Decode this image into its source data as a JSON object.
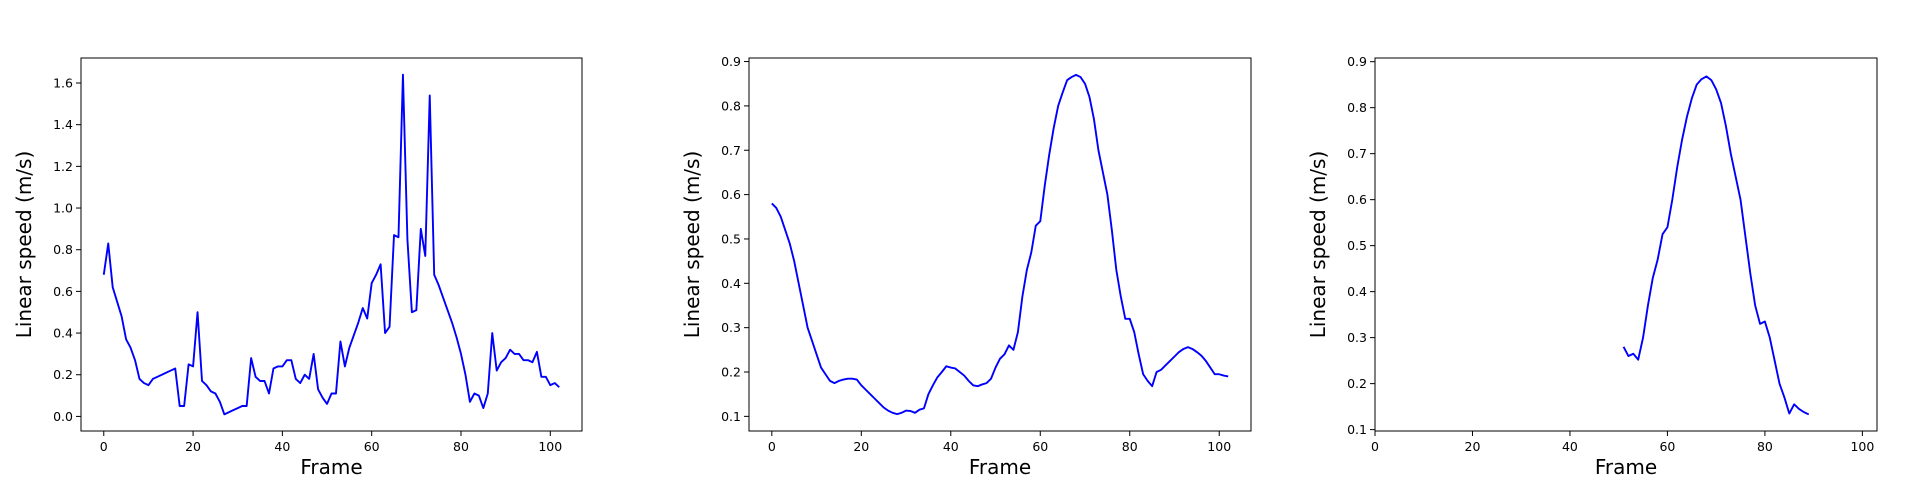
{
  "chart_data": [
    {
      "type": "line",
      "xlabel": "Frame",
      "ylabel": "Linear speed (m/s)",
      "xlim": [
        -5.1,
        107.1
      ],
      "ylim": [
        -0.07,
        1.72
      ],
      "xticks": [
        0,
        20,
        40,
        60,
        80,
        100
      ],
      "yticks": [
        {
          "value": 0,
          "label": "0.0"
        },
        0.2,
        0.4,
        0.6,
        0.8,
        {
          "value": 1,
          "label": "1.0"
        },
        1.2,
        1.4,
        1.6
      ],
      "x": [
        0,
        1,
        2,
        3,
        4,
        5,
        6,
        7,
        8,
        9,
        10,
        11,
        12,
        13,
        14,
        15,
        16,
        17,
        18,
        19,
        20,
        21,
        22,
        23,
        24,
        25,
        26,
        27,
        28,
        29,
        30,
        31,
        32,
        33,
        34,
        35,
        36,
        37,
        38,
        39,
        40,
        41,
        42,
        43,
        44,
        45,
        46,
        47,
        48,
        49,
        50,
        51,
        52,
        53,
        54,
        55,
        56,
        57,
        58,
        59,
        60,
        61,
        62,
        63,
        64,
        65,
        66,
        67,
        68,
        69,
        70,
        71,
        72,
        73,
        74,
        75,
        76,
        77,
        78,
        79,
        80,
        81,
        82,
        83,
        84,
        85,
        86,
        87,
        88,
        89,
        90,
        91,
        92,
        93,
        94,
        95,
        96,
        97,
        98,
        99,
        100,
        101,
        102
      ],
      "series": [
        {
          "color": "#0000ff",
          "values": [
            0.68,
            0.83,
            0.62,
            0.55,
            0.48,
            0.37,
            0.33,
            0.27,
            0.18,
            0.16,
            0.15,
            0.18,
            0.19,
            0.2,
            0.21,
            0.22,
            0.23,
            0.05,
            0.05,
            0.25,
            0.24,
            0.5,
            0.17,
            0.15,
            0.12,
            0.11,
            0.07,
            0.01,
            0.02,
            0.03,
            0.04,
            0.05,
            0.05,
            0.28,
            0.19,
            0.17,
            0.17,
            0.11,
            0.23,
            0.24,
            0.24,
            0.27,
            0.27,
            0.18,
            0.16,
            0.2,
            0.18,
            0.3,
            0.13,
            0.09,
            0.06,
            0.11,
            0.11,
            0.36,
            0.24,
            0.33,
            0.39,
            0.45,
            0.52,
            0.47,
            0.64,
            0.68,
            0.73,
            0.4,
            0.43,
            0.87,
            0.86,
            1.64,
            0.85,
            0.5,
            0.51,
            0.9,
            0.77,
            1.54,
            0.68,
            0.63,
            0.57,
            0.51,
            0.45,
            0.38,
            0.3,
            0.2,
            0.07,
            0.11,
            0.1,
            0.04,
            0.11,
            0.4,
            0.22,
            0.26,
            0.28,
            0.32,
            0.3,
            0.3,
            0.27,
            0.27,
            0.26,
            0.31,
            0.19,
            0.19,
            0.15,
            0.16,
            0.14
          ]
        }
      ]
    },
    {
      "type": "line",
      "xlabel": "Frame",
      "ylabel": "Linear speed (m/s)",
      "xlim": [
        -5.1,
        107.1
      ],
      "ylim": [
        0.067,
        0.908
      ],
      "xticks": [
        0,
        20,
        40,
        60,
        80,
        100
      ],
      "yticks": [
        0.1,
        0.2,
        0.3,
        0.4,
        0.5,
        0.6,
        0.7,
        0.8,
        0.9
      ],
      "x": [
        0,
        1,
        2,
        3,
        4,
        5,
        6,
        7,
        8,
        9,
        10,
        11,
        12,
        13,
        14,
        15,
        16,
        17,
        18,
        19,
        20,
        21,
        22,
        23,
        24,
        25,
        26,
        27,
        28,
        29,
        30,
        31,
        32,
        33,
        34,
        35,
        36,
        37,
        38,
        39,
        40,
        41,
        42,
        43,
        44,
        45,
        46,
        47,
        48,
        49,
        50,
        51,
        52,
        53,
        54,
        55,
        56,
        57,
        58,
        59,
        60,
        61,
        62,
        63,
        64,
        65,
        66,
        67,
        68,
        69,
        70,
        71,
        72,
        73,
        74,
        75,
        76,
        77,
        78,
        79,
        80,
        81,
        82,
        83,
        84,
        85,
        86,
        87,
        88,
        89,
        90,
        91,
        92,
        93,
        94,
        95,
        96,
        97,
        98,
        99,
        100,
        101,
        102
      ],
      "series": [
        {
          "color": "#0000ff",
          "values": [
            0.58,
            0.57,
            0.55,
            0.52,
            0.49,
            0.45,
            0.4,
            0.35,
            0.3,
            0.27,
            0.24,
            0.21,
            0.195,
            0.18,
            0.175,
            0.18,
            0.183,
            0.185,
            0.185,
            0.183,
            0.17,
            0.16,
            0.15,
            0.14,
            0.13,
            0.12,
            0.113,
            0.108,
            0.105,
            0.108,
            0.113,
            0.112,
            0.108,
            0.115,
            0.118,
            0.15,
            0.17,
            0.188,
            0.2,
            0.213,
            0.21,
            0.208,
            0.2,
            0.192,
            0.18,
            0.17,
            0.168,
            0.172,
            0.175,
            0.185,
            0.21,
            0.23,
            0.24,
            0.26,
            0.25,
            0.29,
            0.37,
            0.43,
            0.47,
            0.53,
            0.54,
            0.62,
            0.69,
            0.75,
            0.8,
            0.83,
            0.858,
            0.865,
            0.87,
            0.865,
            0.85,
            0.82,
            0.77,
            0.7,
            0.65,
            0.6,
            0.52,
            0.43,
            0.37,
            0.32,
            0.32,
            0.29,
            0.24,
            0.195,
            0.18,
            0.168,
            0.2,
            0.205,
            0.215,
            0.225,
            0.235,
            0.245,
            0.252,
            0.256,
            0.252,
            0.245,
            0.237,
            0.225,
            0.21,
            0.195,
            0.195,
            0.192,
            0.19
          ]
        }
      ]
    },
    {
      "type": "line",
      "xlabel": "Frame",
      "ylabel": "Linear speed (m/s)",
      "xlim": [
        0,
        103
      ],
      "ylim": [
        0.097,
        0.908
      ],
      "xticks": [
        0,
        20,
        40,
        60,
        80,
        100
      ],
      "yticks": [
        0.1,
        0.2,
        0.3,
        0.4,
        0.5,
        0.6,
        0.7,
        0.8,
        0.9
      ],
      "x": [
        51,
        52,
        53,
        54,
        55,
        56,
        57,
        58,
        59,
        60,
        61,
        62,
        63,
        64,
        65,
        66,
        67,
        68,
        69,
        70,
        71,
        72,
        73,
        74,
        75,
        76,
        77,
        78,
        79,
        80,
        81,
        82,
        83,
        84,
        85,
        86,
        87,
        88,
        89
      ],
      "series": [
        {
          "color": "#0000ff",
          "values": [
            0.28,
            0.26,
            0.265,
            0.252,
            0.3,
            0.37,
            0.43,
            0.47,
            0.525,
            0.54,
            0.6,
            0.67,
            0.73,
            0.78,
            0.82,
            0.85,
            0.862,
            0.868,
            0.86,
            0.84,
            0.81,
            0.76,
            0.7,
            0.65,
            0.6,
            0.52,
            0.44,
            0.37,
            0.33,
            0.335,
            0.3,
            0.25,
            0.2,
            0.17,
            0.135,
            0.155,
            0.145,
            0.138,
            0.133
          ]
        }
      ]
    }
  ]
}
